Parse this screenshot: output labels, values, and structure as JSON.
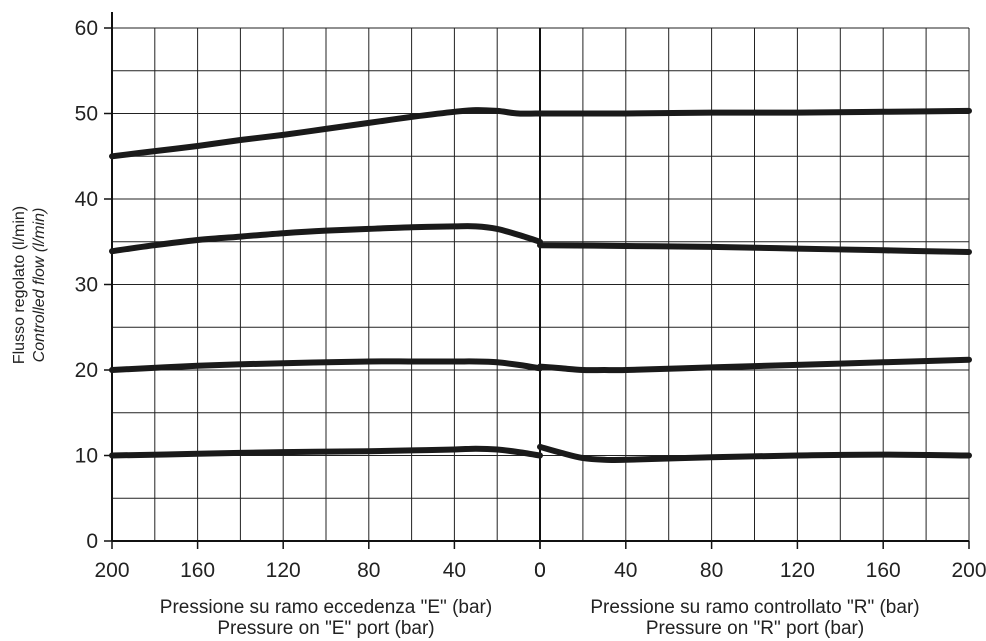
{
  "chart_data": {
    "type": "line",
    "ylabel": "Flusso regolato (l/min)",
    "ylabel_en": "Controlled flow (l/min)",
    "ylim": [
      0,
      60
    ],
    "yticks": [
      "0",
      "10",
      "20",
      "30",
      "40",
      "50",
      "60"
    ],
    "grid": true,
    "panels": [
      {
        "id": "E",
        "xlabel": "Pressione su ramo eccedenza \"E\" (bar)",
        "xlabel_en": "Pressure on \"E\" port (bar)",
        "xlim": [
          200,
          0
        ],
        "xticks": [
          "200",
          "160",
          "120",
          "80",
          "40",
          "0"
        ]
      },
      {
        "id": "R",
        "xlabel": "Pressione su ramo controllato \"R\" (bar)",
        "xlabel_en": "Pressure on \"R\" port (bar)",
        "xlim": [
          0,
          200
        ],
        "xticks": [
          "0",
          "40",
          "80",
          "120",
          "160",
          "200"
        ]
      }
    ],
    "series": [
      {
        "E": {
          "x": [
            200,
            180,
            160,
            140,
            120,
            100,
            80,
            60,
            40,
            30,
            20,
            10,
            0
          ],
          "y": [
            45.0,
            45.6,
            46.2,
            46.9,
            47.5,
            48.2,
            48.9,
            49.6,
            50.2,
            50.4,
            50.3,
            50.0,
            50.0
          ]
        },
        "R": {
          "x": [
            0,
            40,
            80,
            120,
            160,
            200
          ],
          "y": [
            50.0,
            50.0,
            50.1,
            50.1,
            50.2,
            50.3
          ]
        }
      },
      {
        "E": {
          "x": [
            200,
            180,
            160,
            140,
            120,
            100,
            80,
            60,
            40,
            30,
            20,
            10,
            0
          ],
          "y": [
            33.9,
            34.6,
            35.2,
            35.6,
            36.0,
            36.3,
            36.5,
            36.7,
            36.8,
            36.8,
            36.5,
            35.8,
            35.0
          ]
        },
        "R": {
          "x": [
            0,
            40,
            80,
            120,
            160,
            200
          ],
          "y": [
            34.6,
            34.5,
            34.4,
            34.2,
            34.0,
            33.8
          ]
        }
      },
      {
        "E": {
          "x": [
            200,
            160,
            120,
            80,
            60,
            40,
            30,
            20,
            10,
            0
          ],
          "y": [
            20.0,
            20.5,
            20.8,
            21.0,
            21.0,
            21.0,
            21.0,
            20.9,
            20.6,
            20.2
          ]
        },
        "R": {
          "x": [
            0,
            10,
            20,
            30,
            40,
            80,
            120,
            160,
            200
          ],
          "y": [
            20.4,
            20.2,
            20.0,
            20.0,
            20.0,
            20.3,
            20.6,
            20.9,
            21.2
          ]
        }
      },
      {
        "E": {
          "x": [
            200,
            160,
            120,
            80,
            60,
            40,
            30,
            20,
            10,
            0
          ],
          "y": [
            10.0,
            10.2,
            10.4,
            10.5,
            10.6,
            10.7,
            10.8,
            10.7,
            10.4,
            10.0
          ]
        },
        "R": {
          "x": [
            0,
            10,
            20,
            30,
            40,
            80,
            120,
            160,
            200
          ],
          "y": [
            11.0,
            10.3,
            9.7,
            9.5,
            9.5,
            9.8,
            10.0,
            10.1,
            10.0
          ]
        }
      }
    ]
  }
}
